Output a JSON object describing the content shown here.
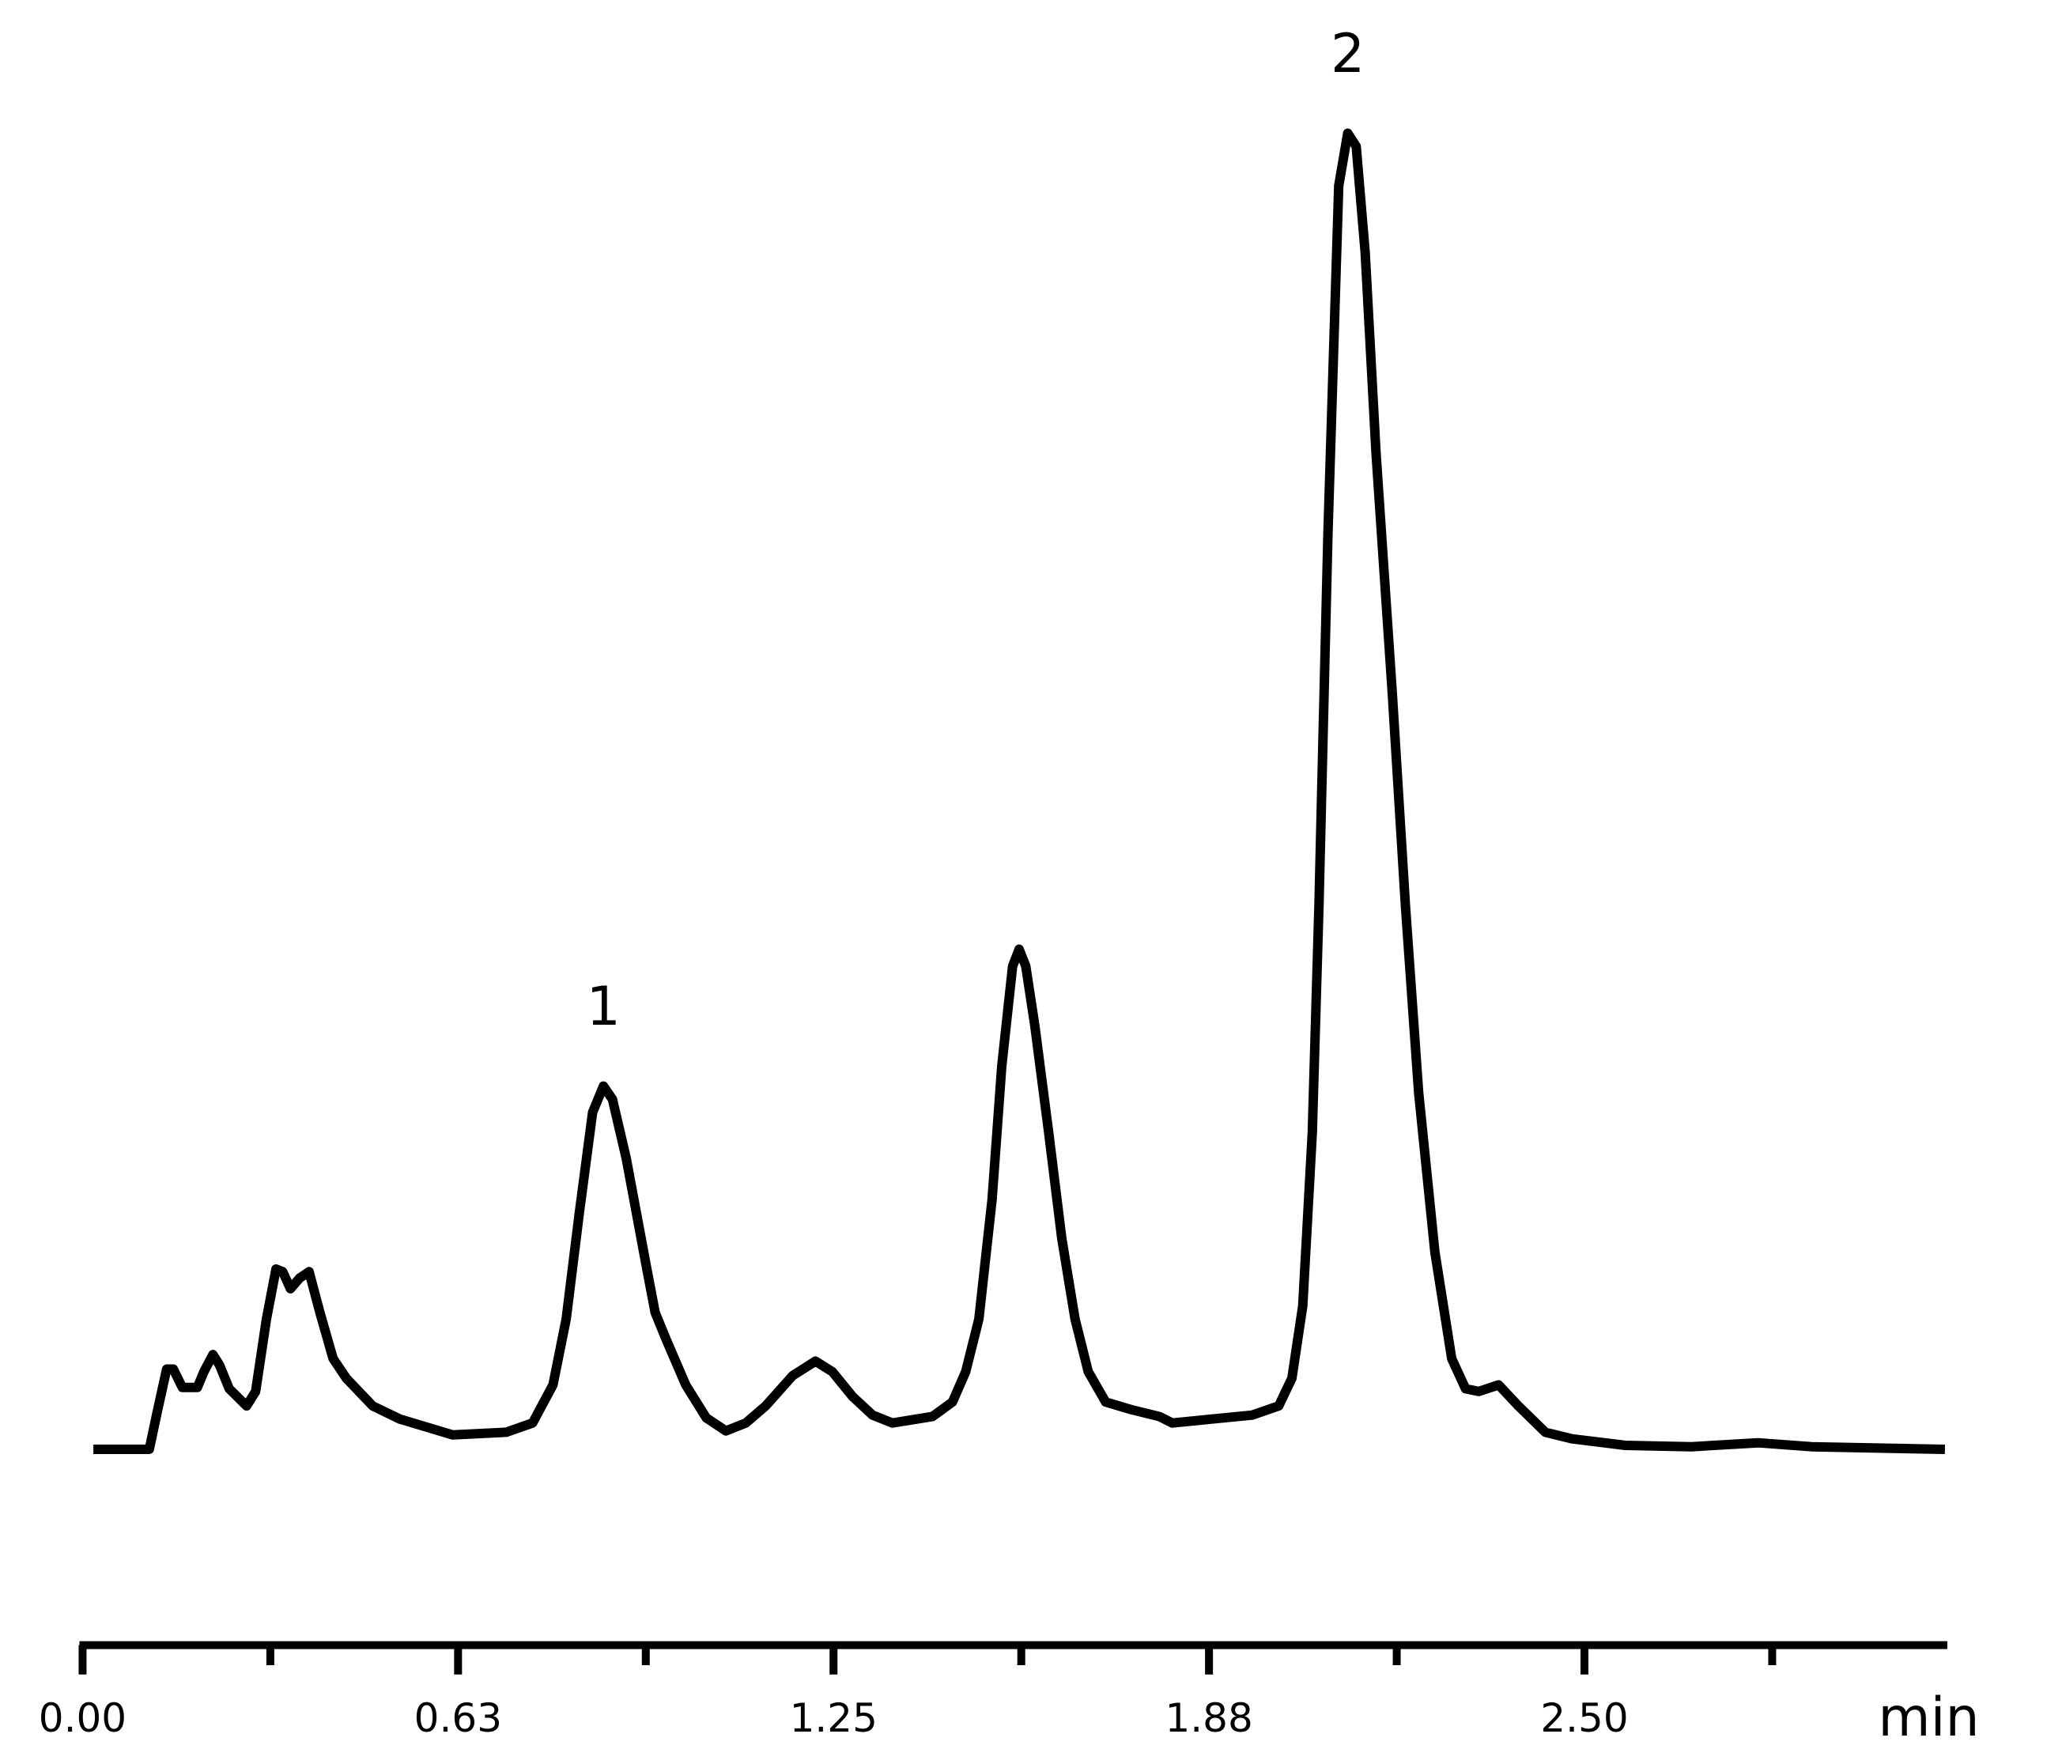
{
  "chart_data": {
    "type": "line",
    "xlabel": "min",
    "xlim": [
      0,
      3.104
    ],
    "ylim": [
      0,
      100
    ],
    "xticks": [
      {
        "value": 0,
        "label": "0.00"
      },
      {
        "value": 0.625,
        "label": "0.63"
      },
      {
        "value": 1.25,
        "label": "1.25"
      },
      {
        "value": 1.875,
        "label": "1.88"
      },
      {
        "value": 2.5,
        "label": "2.50"
      }
    ],
    "xminorticks": [
      0.3125,
      0.9375,
      1.5625,
      2.1875,
      2.8125
    ],
    "annotations": [
      {
        "text": "1",
        "x": 0.867
      },
      {
        "text": "2",
        "x": 2.106
      }
    ],
    "x": [
      0.018,
      0.111,
      0.124,
      0.14,
      0.151,
      0.166,
      0.191,
      0.202,
      0.217,
      0.228,
      0.244,
      0.273,
      0.288,
      0.306,
      0.322,
      0.333,
      0.346,
      0.361,
      0.377,
      0.395,
      0.417,
      0.439,
      0.483,
      0.528,
      0.616,
      0.705,
      0.749,
      0.783,
      0.805,
      0.827,
      0.849,
      0.867,
      0.882,
      0.905,
      0.938,
      0.953,
      0.971,
      1.004,
      1.038,
      1.071,
      1.104,
      1.137,
      1.182,
      1.22,
      1.248,
      1.282,
      1.315,
      1.348,
      1.415,
      1.448,
      1.47,
      1.492,
      1.514,
      1.53,
      1.548,
      1.559,
      1.57,
      1.585,
      1.608,
      1.63,
      1.652,
      1.674,
      1.703,
      1.747,
      1.792,
      1.814,
      1.88,
      1.947,
      1.991,
      2.013,
      2.031,
      2.047,
      2.058,
      2.073,
      2.091,
      2.106,
      2.12,
      2.135,
      2.153,
      2.18,
      2.202,
      2.224,
      2.251,
      2.279,
      2.302,
      2.324,
      2.357,
      2.39,
      2.435,
      2.479,
      2.568,
      2.678,
      2.789,
      2.878,
      3.1
    ],
    "series": [
      {
        "color": "#000000",
        "values": [
          0,
          0,
          2.8,
          6.1,
          6.1,
          4.7,
          4.7,
          5.9,
          7.2,
          6.4,
          4.6,
          3.3,
          4.4,
          9.9,
          13.7,
          13.5,
          12.2,
          13.0,
          13.5,
          10.4,
          6.9,
          5.4,
          3.3,
          2.3,
          1.1,
          1.3,
          2.0,
          4.9,
          9.9,
          18.0,
          25.6,
          27.6,
          26.6,
          22.1,
          14.0,
          10.4,
          8.4,
          4.9,
          2.4,
          1.4,
          2.0,
          3.3,
          5.6,
          6.7,
          5.9,
          4.0,
          2.6,
          2.0,
          2.5,
          3.6,
          5.9,
          9.9,
          19.0,
          29.1,
          36.7,
          38.0,
          36.7,
          32.2,
          24.1,
          16.0,
          9.9,
          5.9,
          3.6,
          3.0,
          2.5,
          2.0,
          2.3,
          2.6,
          3.3,
          5.4,
          10.9,
          24.1,
          41.3,
          69.6,
          96.0,
          100,
          99.0,
          90.9,
          75.7,
          57.5,
          41.3,
          27.1,
          15.0,
          6.9,
          4.6,
          4.4,
          4.9,
          3.3,
          1.3,
          0.8,
          0.3,
          0.2,
          0.5,
          0.2,
          0
        ]
      }
    ]
  }
}
